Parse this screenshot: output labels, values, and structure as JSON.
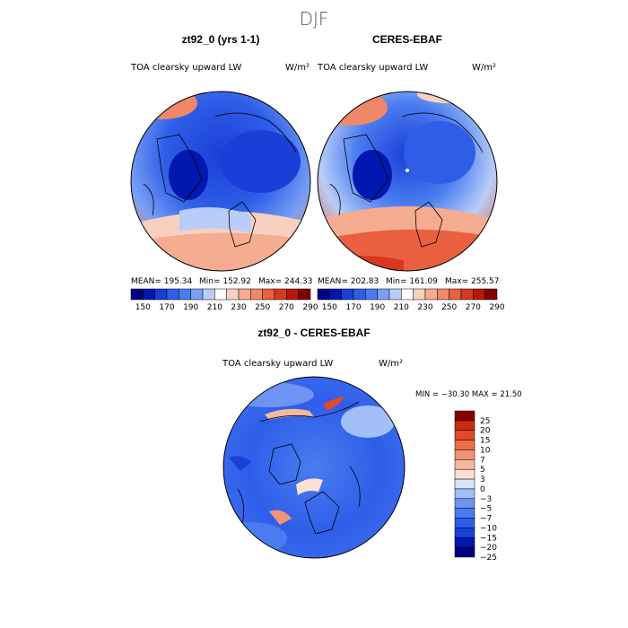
{
  "figure": {
    "title": "DJF",
    "units_label": "W/m²"
  },
  "colors": {
    "cbar_top": [
      "#000080",
      "#0018b0",
      "#1a3fd8",
      "#2e5ee8",
      "#4a7cf0",
      "#7aa0f5",
      "#b8cdf8",
      "#ffffff",
      "#f8d0c0",
      "#f5ac90",
      "#f08868",
      "#e86040",
      "#d83820",
      "#b81808",
      "#800000"
    ],
    "cbar_diff": [
      "#000080",
      "#0018b0",
      "#1a3fd8",
      "#2e5ee8",
      "#4a7cf0",
      "#6d94f3",
      "#a3bff7",
      "#d6e3fb",
      "#fbe0d4",
      "#f6b89e",
      "#f29373",
      "#ec6e49",
      "#e04a28",
      "#c82c10",
      "#8a0000"
    ]
  },
  "chart_data": [
    {
      "type": "heatmap",
      "projection": "polar stereographic (north pole)",
      "title": "zt92_0 (yrs 1-1)",
      "variable": "TOA clearsky upward LW",
      "units": "W/m²",
      "stats": {
        "mean_text": "MEAN= 195.34",
        "min_text": "Min= 152.92",
        "max_text": "Max= 244.33"
      },
      "colorbar": {
        "orientation": "horizontal",
        "ticks": [
          "150",
          "170",
          "190",
          "210",
          "230",
          "250",
          "270",
          "290"
        ]
      }
    },
    {
      "type": "heatmap",
      "projection": "polar stereographic (north pole)",
      "title": "CERES-EBAF",
      "variable": "TOA clearsky upward LW",
      "units": "W/m²",
      "stats": {
        "mean_text": "MEAN= 202.83",
        "min_text": "Min= 161.09",
        "max_text": "Max= 255.57"
      },
      "colorbar": {
        "orientation": "horizontal",
        "ticks": [
          "150",
          "170",
          "190",
          "210",
          "230",
          "250",
          "270",
          "290"
        ]
      }
    },
    {
      "type": "heatmap",
      "projection": "polar stereographic (north pole)",
      "title": "zt92_0 - CERES-EBAF",
      "variable": "TOA clearsky upward LW",
      "units": "W/m²",
      "stats": {
        "minmax_text": "MIN = −30.30  MAX =   21.50"
      },
      "colorbar": {
        "orientation": "vertical",
        "ticks": [
          "25",
          "20",
          "15",
          "10",
          "7",
          "5",
          "3",
          "0",
          "−3",
          "−5",
          "−7",
          "−10",
          "−15",
          "−20",
          "−25"
        ]
      }
    }
  ]
}
